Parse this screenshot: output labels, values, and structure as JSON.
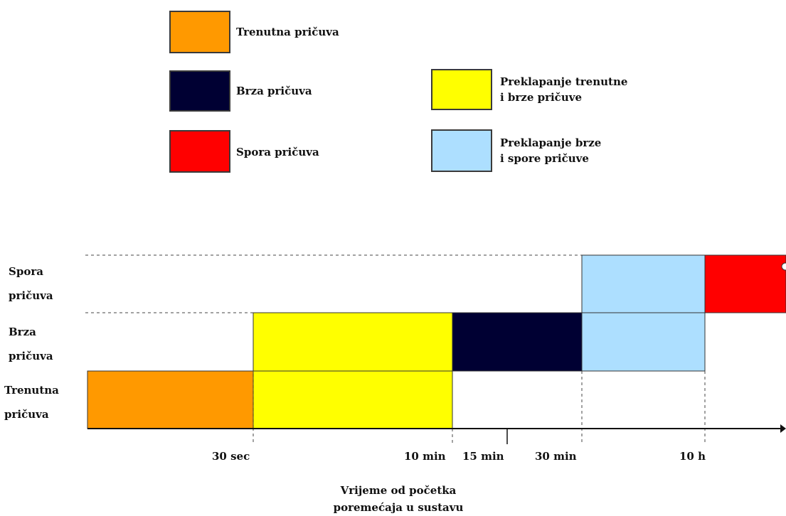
{
  "legend": {
    "items": [
      {
        "key": "trenutna",
        "label_lines": [
          "Trenutna pričuva"
        ],
        "color": "#FF9900"
      },
      {
        "key": "brza",
        "label_lines": [
          "Brza pričuva"
        ],
        "color": "#000033"
      },
      {
        "key": "spora",
        "label_lines": [
          "Spora pričuva"
        ],
        "color": "#FF0000"
      },
      {
        "key": "overlap_trenutna_brza",
        "label_lines": [
          "Preklapanje trenutne",
          "i brze pričuve"
        ],
        "color": "#FFFF00"
      },
      {
        "key": "overlap_brza_spora",
        "label_lines": [
          "Preklapanje brze",
          "i spore pričuve"
        ],
        "color": "#ADDFFF"
      }
    ]
  },
  "rows": [
    {
      "key": "spora",
      "label_lines": [
        "Spora",
        "pričuva"
      ]
    },
    {
      "key": "brza",
      "label_lines": [
        "Brza",
        "pričuva"
      ]
    },
    {
      "key": "trenutna",
      "label_lines": [
        "Trenutna",
        "pričuva"
      ]
    }
  ],
  "time_axis": {
    "ticks": [
      "30 sec",
      "10 min",
      "15 min",
      "30 min",
      "10 h"
    ],
    "caption_lines": [
      "Vrijeme od početka",
      "poremećaja u sustavu"
    ]
  },
  "bars": [
    {
      "row": "trenutna",
      "from": "0",
      "to": "30 sec",
      "color": "#FF9900"
    },
    {
      "row": "trenutna",
      "from": "30 sec",
      "to": "10 min",
      "color": "#FFFF00"
    },
    {
      "row": "brza",
      "from": "30 sec",
      "to": "10 min",
      "color": "#FFFF00"
    },
    {
      "row": "brza",
      "from": "10 min",
      "to": "30 min",
      "color": "#000033"
    },
    {
      "row": "brza",
      "from": "30 min",
      "to": "10 h",
      "color": "#ADDFFF"
    },
    {
      "row": "spora",
      "from": "30 min",
      "to": "10 h",
      "color": "#ADDFFF"
    },
    {
      "row": "spora",
      "from": "10 h",
      "to": "end",
      "color": "#FF0000"
    }
  ]
}
